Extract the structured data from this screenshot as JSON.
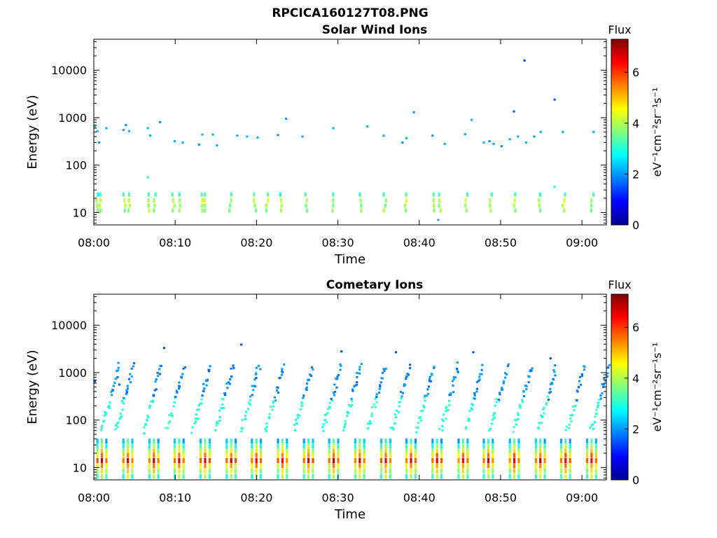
{
  "figure_title": "RPCICA160127T08.PNG",
  "colors": {
    "colormap": [
      "#00008f",
      "#0000ff",
      "#0080ff",
      "#00ffff",
      "#80ff80",
      "#ffff00",
      "#ff8000",
      "#ff0000",
      "#800000"
    ],
    "axis": "#000000",
    "background": "#ffffff"
  },
  "chart_data": [
    {
      "type": "heatmap",
      "title": "Solar Wind Ions",
      "xlabel": "Time",
      "ylabel": "Energy (eV)",
      "y_scale": "log",
      "ylim": [
        5.5,
        45000
      ],
      "x_minutes_range": [
        0,
        63
      ],
      "xtick_labels": [
        "08:00",
        "08:10",
        "08:20",
        "08:30",
        "08:40",
        "08:50",
        "09:00"
      ],
      "ytick_labels": [
        "10",
        "100",
        "1000",
        "10000"
      ],
      "colorbar": {
        "title": "Flux",
        "unit_label": "eV⁻¹cm⁻²sr⁻¹s⁻¹",
        "range": [
          0,
          7.3
        ],
        "tick_labels": [
          "0",
          "2",
          "4",
          "6"
        ]
      },
      "dominant_low_energy_flux": 3.8,
      "mid_energy_cells": [
        [
          0,
          650,
          2.2
        ],
        [
          0.3,
          520,
          2.2
        ],
        [
          0.5,
          300,
          2.0
        ],
        [
          1.4,
          600,
          2.2
        ],
        [
          3.5,
          550,
          2.2
        ],
        [
          3.8,
          700,
          2.0
        ],
        [
          4.2,
          520,
          2.2
        ],
        [
          6.5,
          600,
          2.2
        ],
        [
          6.8,
          420,
          2.2
        ],
        [
          8,
          800,
          2.0
        ],
        [
          9.8,
          320,
          2.2
        ],
        [
          10.8,
          300,
          2.2
        ],
        [
          12.8,
          270,
          2.0
        ],
        [
          13.2,
          440,
          2.2
        ],
        [
          14.5,
          440,
          2.2
        ],
        [
          15,
          260,
          2.2
        ],
        [
          17.5,
          420,
          2.2
        ],
        [
          18.7,
          400,
          2.2
        ],
        [
          20,
          380,
          2.2
        ],
        [
          22.5,
          430,
          2.0
        ],
        [
          23.5,
          950,
          2.0
        ],
        [
          25.5,
          400,
          2.2
        ],
        [
          29.3,
          600,
          2.2
        ],
        [
          33.5,
          650,
          2.2
        ],
        [
          35.5,
          420,
          2.2
        ],
        [
          37.8,
          300,
          2.0
        ],
        [
          38.3,
          370,
          2.2
        ],
        [
          39.2,
          1300,
          2.0
        ],
        [
          41.5,
          420,
          2.0
        ],
        [
          43,
          280,
          2.2
        ],
        [
          45.5,
          450,
          2.2
        ],
        [
          46.3,
          900,
          2.2
        ],
        [
          47.8,
          300,
          2.2
        ],
        [
          48.5,
          320,
          2.0
        ],
        [
          49,
          280,
          2.2
        ],
        [
          50,
          250,
          2.0
        ],
        [
          51,
          350,
          2.2
        ],
        [
          52,
          400,
          2.2
        ],
        [
          53,
          300,
          2.2
        ],
        [
          54,
          400,
          2.0
        ],
        [
          54.8,
          500,
          2.2
        ],
        [
          56.5,
          2400,
          1.6
        ],
        [
          57.5,
          500,
          2.2
        ],
        [
          61.3,
          500,
          2.2
        ],
        [
          51.5,
          1350,
          1.6
        ],
        [
          52.8,
          16000,
          1.4
        ],
        [
          6.5,
          55,
          3.0
        ],
        [
          56.5,
          35,
          3.0
        ],
        [
          42.2,
          7,
          2.2
        ]
      ],
      "low_energy_column_minutes": [
        0.1,
        0.5,
        3.5,
        4.0,
        6.5,
        7.2,
        9.5,
        10.3,
        13.0,
        13.4,
        16.5,
        19.5,
        21.0,
        22.8,
        25.8,
        29.0,
        32.5,
        35.5,
        38.0,
        41.5,
        42.2,
        45.5,
        48.5,
        51.5,
        54.5,
        57.5,
        61.0
      ]
    },
    {
      "type": "heatmap",
      "title": "Cometary Ions",
      "xlabel": "Time",
      "ylabel": "Energy (eV)",
      "y_scale": "log",
      "ylim": [
        5.5,
        45000
      ],
      "x_minutes_range": [
        0,
        63
      ],
      "xtick_labels": [
        "08:00",
        "08:10",
        "08:20",
        "08:30",
        "08:40",
        "08:50",
        "09:00"
      ],
      "ytick_labels": [
        "10",
        "100",
        "1000",
        "10000"
      ],
      "colorbar": {
        "title": "Flux",
        "unit_label": "eV⁻¹cm⁻²sr⁻¹s⁻¹",
        "range": [
          0,
          7.3
        ],
        "tick_labels": [
          "0",
          "2",
          "4",
          "6"
        ]
      },
      "band_column_minutes": [
        0.3,
        3.5,
        6.7,
        9.8,
        13.0,
        16.2,
        19.3,
        22.5,
        25.7,
        28.8,
        32.0,
        35.2,
        38.3,
        41.5,
        44.7,
        47.8,
        51.0,
        54.2,
        57.3,
        60.5
      ],
      "band_profile": [
        [
          36,
          2.6
        ],
        [
          28,
          3.4
        ],
        [
          22,
          4.3
        ],
        [
          18,
          5.0
        ],
        [
          14,
          6.0
        ],
        [
          11,
          4.8
        ],
        [
          8.5,
          4.2
        ],
        [
          6.5,
          3.5
        ]
      ],
      "dispersion_start_minutes": [
        0.8,
        2.5,
        6.0,
        8.8,
        12.0,
        14.8,
        18.0,
        21.0,
        24.5,
        28.0,
        30.5,
        33.5,
        36.5,
        39.5,
        42.5,
        45.5,
        48.5,
        51.5,
        54.5,
        58.0,
        61.0
      ],
      "dispersion_energy_range_ev": [
        60,
        1400
      ],
      "isolated_cells": [
        [
          0,
          650,
          1.5
        ],
        [
          3,
          560,
          1.6
        ],
        [
          8.5,
          3300,
          1.5
        ],
        [
          18,
          3900,
          1.5
        ],
        [
          30.3,
          2800,
          1.5
        ],
        [
          37,
          2700,
          1.5
        ],
        [
          46.5,
          2700,
          1.5
        ],
        [
          56,
          2000,
          1.5
        ]
      ]
    }
  ]
}
